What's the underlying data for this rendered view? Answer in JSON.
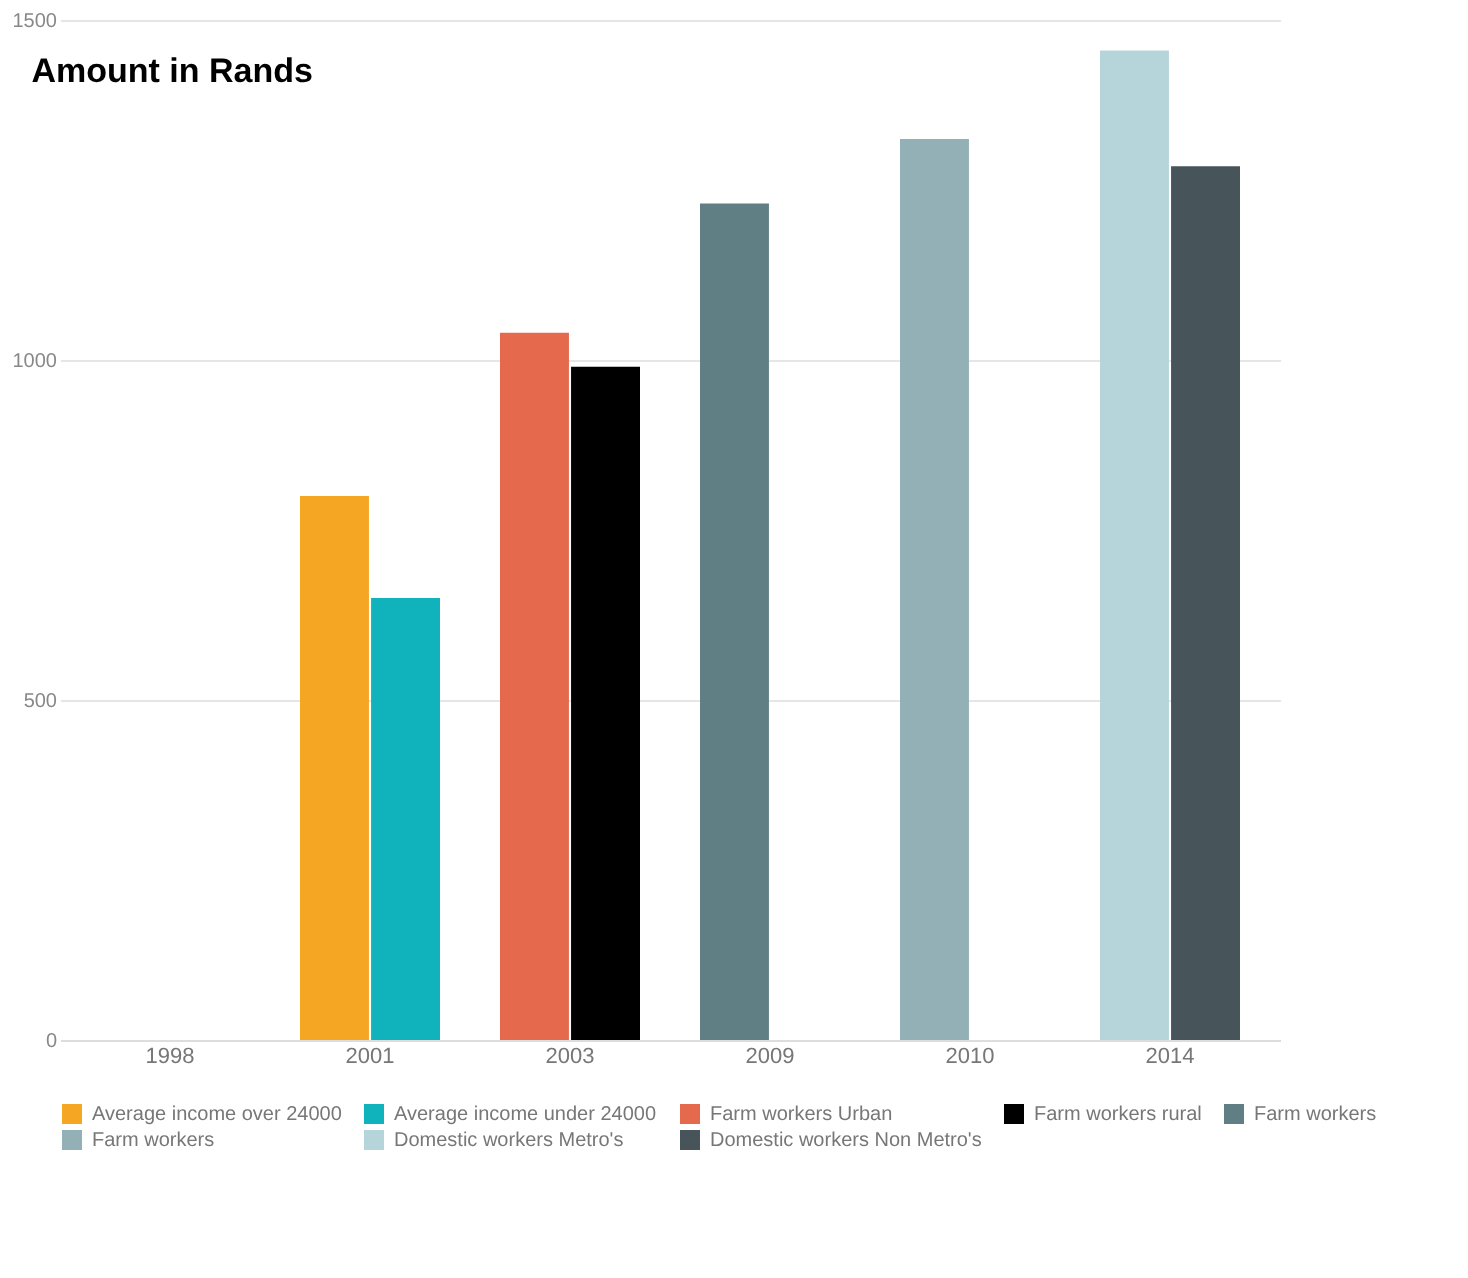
{
  "chart_data": {
    "type": "bar",
    "title": "Amount in Rands",
    "categories": [
      "1998",
      "2001",
      "2003",
      "2009",
      "2010",
      "2014"
    ],
    "series": [
      {
        "name": "Average income over 24000",
        "color": "#f5a623",
        "values": [
          null,
          800,
          null,
          null,
          null,
          null
        ]
      },
      {
        "name": "Average income under 24000",
        "color": "#10b3bc",
        "values": [
          null,
          650,
          null,
          null,
          null,
          null
        ]
      },
      {
        "name": "Farm workers Urban",
        "color": "#e5694d",
        "values": [
          null,
          null,
          1040,
          null,
          null,
          null
        ]
      },
      {
        "name": "Farm workers rural",
        "color": "#000000",
        "values": [
          null,
          null,
          990,
          null,
          null,
          null
        ]
      },
      {
        "name": "Farm workers",
        "color": "#607f84",
        "values": [
          null,
          null,
          null,
          1230,
          null,
          null
        ]
      },
      {
        "name": "Farm workers",
        "color": "#92b0b5",
        "values": [
          null,
          null,
          null,
          null,
          1325,
          null
        ]
      },
      {
        "name": "Domestic workers Metro's",
        "color": "#b6d5db",
        "values": [
          null,
          null,
          null,
          null,
          null,
          1455
        ]
      },
      {
        "name": "Domestic workers Non Metro's",
        "color": "#475459",
        "values": [
          null,
          null,
          null,
          null,
          null,
          1285
        ]
      }
    ],
    "ylim": [
      0,
      1500
    ],
    "yticks": [
      0,
      500,
      1000,
      1500
    ],
    "grid": "y",
    "legend": "bottom"
  }
}
